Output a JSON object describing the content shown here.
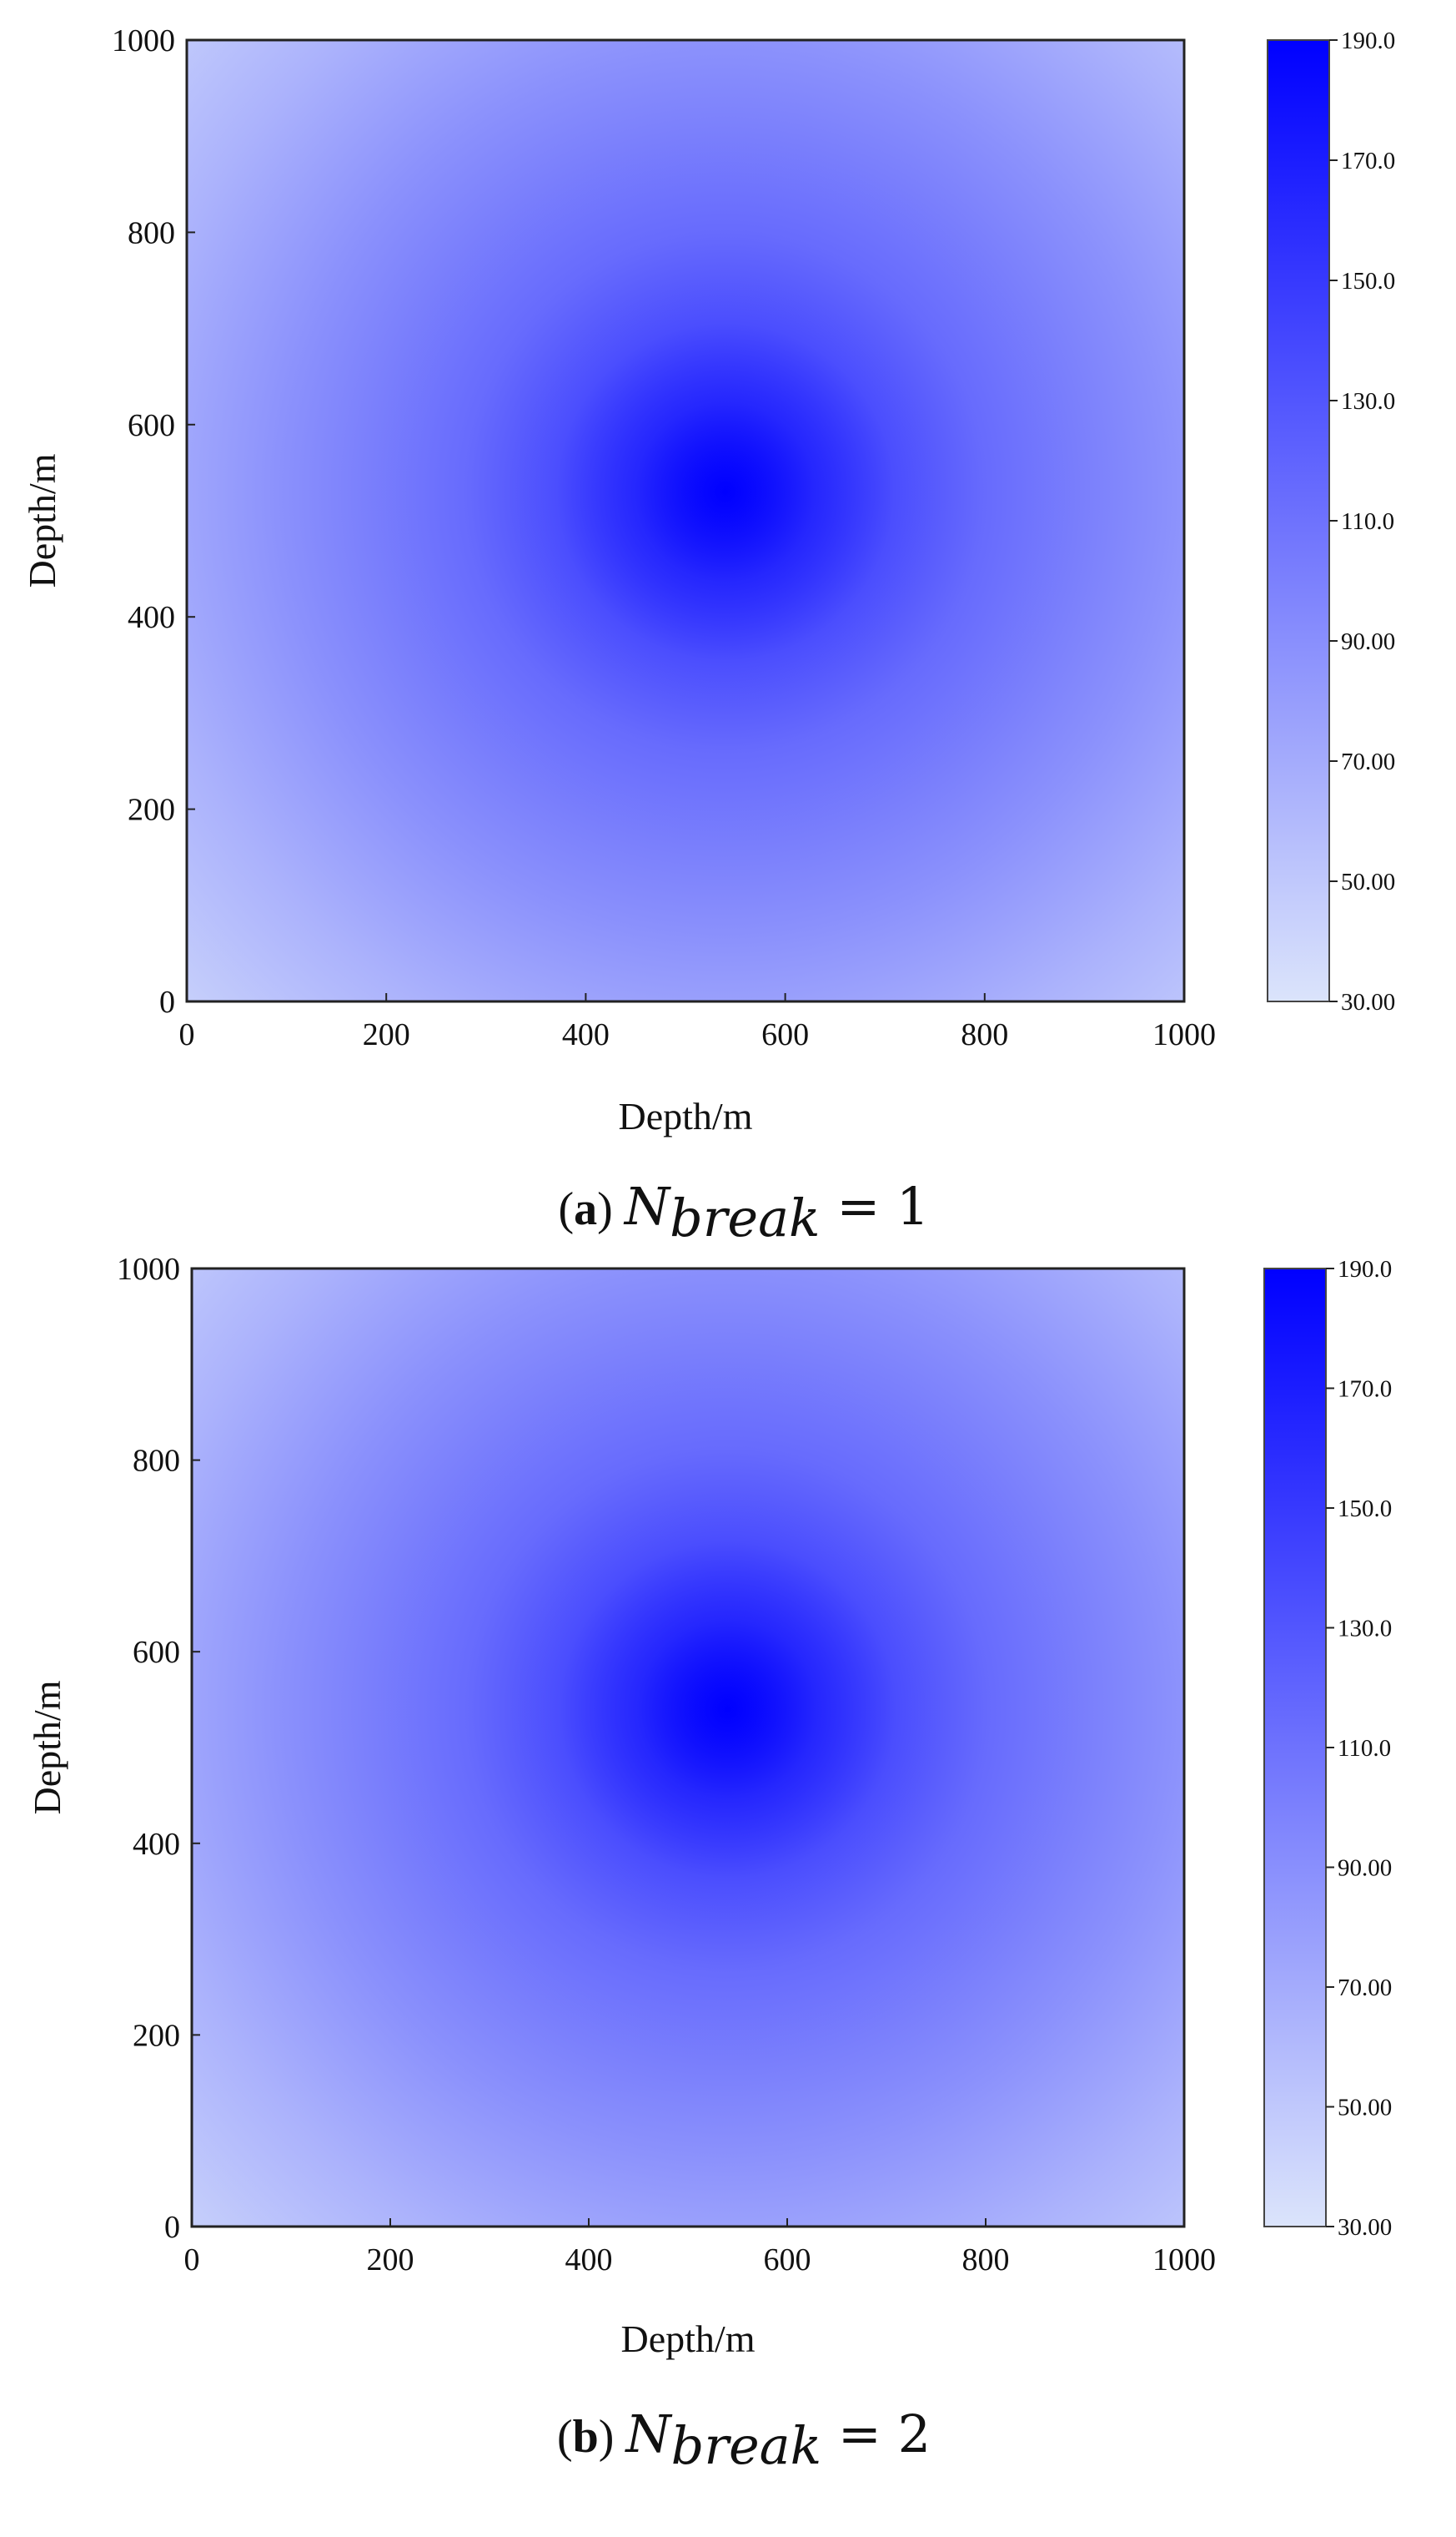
{
  "chart_data": [
    {
      "type": "heatmap",
      "xlabel": "Depth/m",
      "ylabel": "Depth/m",
      "xlim": [
        0,
        1000
      ],
      "ylim": [
        0,
        1000
      ],
      "x_ticks": [
        "0",
        "200",
        "400",
        "600",
        "800",
        "1000"
      ],
      "y_ticks": [
        "0",
        "200",
        "400",
        "600",
        "800",
        "1000"
      ],
      "colorbar": {
        "range": [
          30,
          190
        ],
        "ticks": [
          "30.00",
          "50.00",
          "70.00",
          "90.00",
          "110.0",
          "130.0",
          "150.0",
          "170.0",
          "190.0"
        ],
        "color_low": "#dbe4fb",
        "color_high": "#0000ff"
      },
      "peak": {
        "x": 540,
        "y": 530,
        "value": 190
      },
      "corner_value": 45,
      "caption": {
        "label": "a",
        "variable": "N",
        "subscript": "break",
        "value": "1"
      }
    },
    {
      "type": "heatmap",
      "xlabel": "Depth/m",
      "ylabel": "Depth/m",
      "xlim": [
        0,
        1000
      ],
      "ylim": [
        0,
        1000
      ],
      "x_ticks": [
        "0",
        "200",
        "400",
        "600",
        "800",
        "1000"
      ],
      "y_ticks": [
        "0",
        "200",
        "400",
        "600",
        "800",
        "1000"
      ],
      "colorbar": {
        "range": [
          30,
          190
        ],
        "ticks": [
          "30.00",
          "50.00",
          "70.00",
          "90.00",
          "110.0",
          "130.0",
          "150.0",
          "170.0",
          "190.0"
        ],
        "color_low": "#dbe4fb",
        "color_high": "#0000ff"
      },
      "peak": {
        "x": 540,
        "y": 540,
        "value": 190
      },
      "corner_value": 45,
      "caption": {
        "label": "b",
        "variable": "N",
        "subscript": "break",
        "value": "2"
      }
    }
  ]
}
